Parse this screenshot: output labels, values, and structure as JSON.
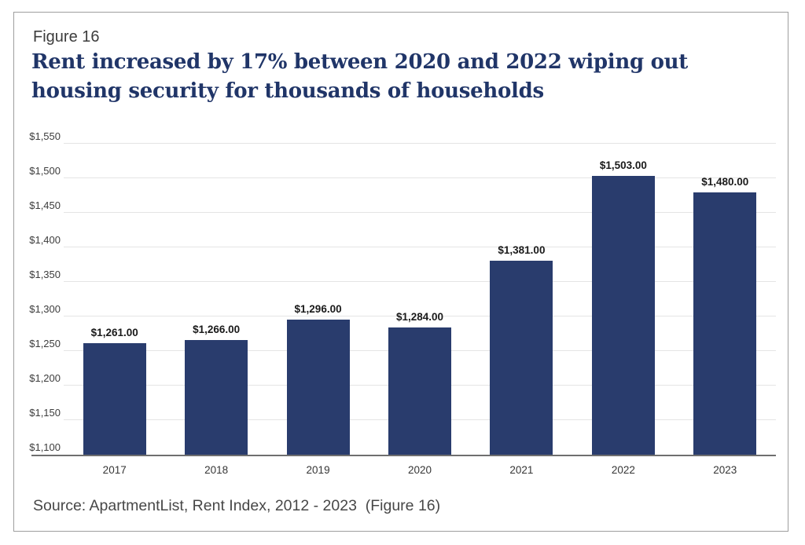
{
  "figure_label": "Figure 16",
  "source_note": "Source: ApartmentList, Rent Index, 2012 - 2023  (Figure 16)",
  "colors": {
    "bar": "#293c6d",
    "title": "#203568",
    "gridline": "#e4e4e4",
    "axis_line": "#6f6f6f",
    "card_border": "#9e9e9e"
  },
  "chart_data": {
    "type": "bar",
    "title": "Rent increased by 17% between 2020 and 2022 wiping out housing security for thousands of households",
    "xlabel": "",
    "ylabel": "",
    "categories": [
      "2017",
      "2018",
      "2019",
      "2020",
      "2021",
      "2022",
      "2023"
    ],
    "values": [
      1261,
      1266,
      1296,
      1284,
      1381,
      1503,
      1480
    ],
    "data_labels": [
      "$1,261.00",
      "$1,266.00",
      "$1,296.00",
      "$1,284.00",
      "$1,381.00",
      "$1,503.00",
      "$1,480.00"
    ],
    "ylim": [
      1100,
      1550
    ],
    "yticks": [
      {
        "value": 1100,
        "label": "$1,100"
      },
      {
        "value": 1150,
        "label": "$1,150"
      },
      {
        "value": 1200,
        "label": "$1,200"
      },
      {
        "value": 1250,
        "label": "$1,250"
      },
      {
        "value": 1300,
        "label": "$1,300"
      },
      {
        "value": 1350,
        "label": "$1,350"
      },
      {
        "value": 1400,
        "label": "$1,400"
      },
      {
        "value": 1450,
        "label": "$1,450"
      },
      {
        "value": 1500,
        "label": "$1,500"
      },
      {
        "value": 1550,
        "label": "$1,550"
      }
    ],
    "grid": "horizontal",
    "legend": "none"
  }
}
